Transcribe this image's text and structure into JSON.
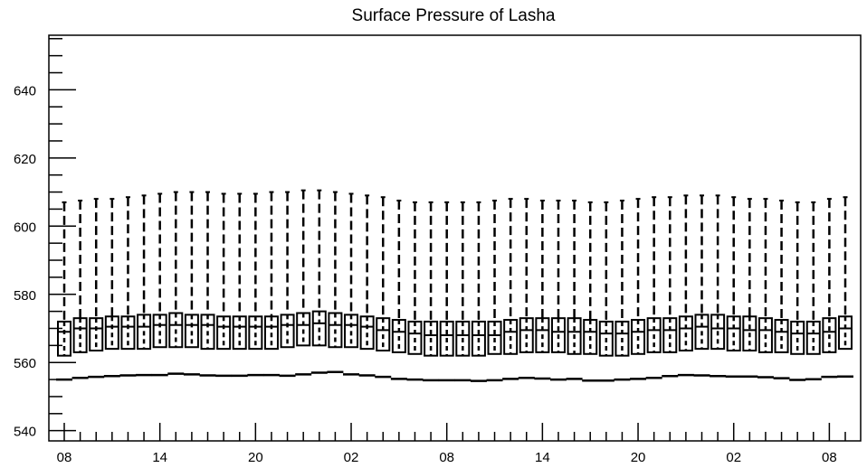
{
  "chart_data": {
    "type": "box",
    "title": "Surface Pressure of Lasha",
    "xlabel": "",
    "ylabel": "",
    "ylim": [
      537,
      656
    ],
    "yticks": [
      540,
      560,
      580,
      600,
      620,
      640
    ],
    "ytick_labels": [
      "540",
      "560",
      "580",
      "600",
      "620",
      "640"
    ],
    "xtick_labels": [
      "08",
      "14",
      "20",
      "02",
      "08",
      "14",
      "20",
      "02",
      "08"
    ],
    "xtick_positions": [
      0,
      6,
      12,
      18,
      24,
      30,
      36,
      42,
      48
    ],
    "grid": false,
    "whisker_max": [
      607,
      607.5,
      608,
      608,
      608.5,
      609,
      609.5,
      610,
      610,
      610,
      609.5,
      609.5,
      609.5,
      610,
      610,
      610.5,
      610.5,
      610,
      609.5,
      609,
      608.5,
      607.5,
      607,
      607,
      607,
      607,
      607,
      607.5,
      608,
      608,
      607.5,
      607.5,
      607.5,
      607,
      607,
      607.5,
      608,
      608.5,
      608.5,
      609,
      609,
      609,
      608.5,
      608,
      608,
      607.5,
      607,
      607,
      608,
      608.5
    ],
    "q3": [
      572,
      573,
      573,
      573.5,
      573.5,
      574,
      574,
      574.5,
      574,
      574,
      573.5,
      573.5,
      573.5,
      573.5,
      574,
      574.5,
      575,
      574.5,
      574,
      573.5,
      573,
      572.5,
      572,
      572,
      572,
      572,
      572,
      572,
      572.5,
      573,
      573,
      573,
      573,
      572.5,
      572,
      572,
      572.5,
      573,
      573,
      573.5,
      574,
      574,
      573.5,
      573.5,
      573,
      572.5,
      572,
      572,
      573,
      573.5
    ],
    "median": [
      569,
      570,
      570,
      570.5,
      570.5,
      570.5,
      571,
      571,
      571,
      571,
      570.5,
      570.5,
      570.5,
      570.5,
      571,
      571,
      571.5,
      571,
      571,
      570.5,
      569.5,
      569,
      568.5,
      568,
      568,
      568,
      568,
      568,
      569,
      569.5,
      569.5,
      569,
      569,
      569,
      568.5,
      568.5,
      569,
      569.5,
      569.5,
      570,
      570.5,
      570,
      570,
      569.5,
      569.5,
      569,
      568.5,
      568.5,
      569,
      570
    ],
    "q1": [
      562,
      563,
      563.5,
      564,
      564,
      564,
      564.5,
      564.5,
      564.5,
      564,
      564,
      564,
      564,
      564,
      564.5,
      565,
      565,
      564.5,
      564.5,
      564,
      563.5,
      563,
      562.5,
      562,
      562,
      562,
      562,
      562.5,
      562.5,
      563,
      563,
      563,
      562.5,
      562.5,
      562,
      562,
      562.5,
      563,
      563,
      563.5,
      564,
      564,
      563.5,
      563.5,
      563,
      563,
      562.5,
      562.5,
      563,
      564
    ],
    "whisker_min": [
      555,
      555.5,
      555.8,
      556,
      556.2,
      556.3,
      556.3,
      556.7,
      556.5,
      556.2,
      556.1,
      556.1,
      556.3,
      556.3,
      556.1,
      556.5,
      557,
      557.2,
      556.5,
      556.2,
      555.8,
      555.2,
      555,
      554.8,
      554.8,
      554.8,
      554.6,
      554.8,
      555.2,
      555.5,
      555.3,
      555,
      555.2,
      554.7,
      554.7,
      555,
      555.2,
      555.5,
      556,
      556.3,
      556.2,
      556,
      555.9,
      555.9,
      555.7,
      555.4,
      554.9,
      555.1,
      555.8,
      555.9
    ]
  }
}
